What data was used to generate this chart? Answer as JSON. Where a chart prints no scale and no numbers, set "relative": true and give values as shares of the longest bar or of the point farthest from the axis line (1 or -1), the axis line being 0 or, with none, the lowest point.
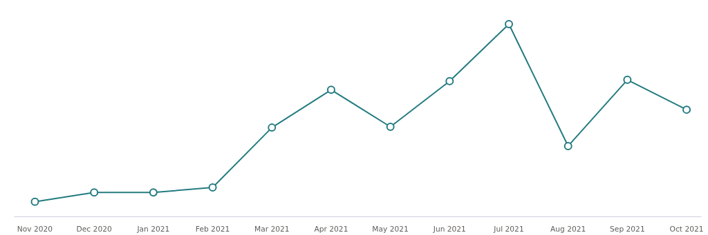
{
  "chart_data": {
    "type": "line",
    "relative": true,
    "marker": "circle",
    "line_style": "solid",
    "grid": false,
    "categories": [
      "Nov 2020",
      "Dec 2020",
      "Jan 2021",
      "Feb 2021",
      "Mar 2021",
      "Apr 2021",
      "May 2021",
      "Jun 2021",
      "Jul 2021",
      "Aug 2021",
      "Sep 2021",
      "Oct 2021"
    ],
    "series": [
      {
        "color": "#237b80",
        "values": [
          0.078,
          0.126,
          0.126,
          0.152,
          0.463,
          0.659,
          0.467,
          0.704,
          1,
          0.367,
          0.711,
          0.556
        ]
      }
    ]
  }
}
